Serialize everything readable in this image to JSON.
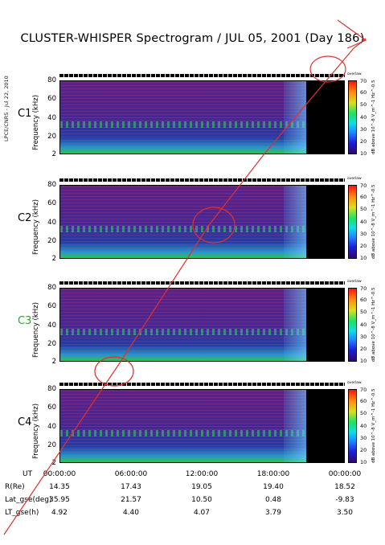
{
  "header": {
    "title": "CLUSTER-WHISPER Spectrogram / JUL 05, 2001 (Day 186)",
    "stamp": "LPCE/CNRS - Jul 22, 2010"
  },
  "ui": {
    "ylabel": "Frequency (kHz)",
    "cb_title": "overlaw",
    "cb_label": "dB above 10^-8 V_m^-1 Hz^-0.5"
  },
  "chart_data": [
    {
      "type": "heatmap",
      "panel": "C1",
      "xlabel": "UT",
      "ylabel": "Frequency (kHz)",
      "ylim": [
        2,
        80
      ],
      "yticks": [
        "80",
        "60",
        "40",
        "20",
        "2"
      ],
      "colorbar": {
        "range": [
          10,
          70
        ],
        "ticks": [
          "70",
          "60",
          "50",
          "40",
          "30",
          "20",
          "10"
        ]
      },
      "label_color": "#000000"
    },
    {
      "type": "heatmap",
      "panel": "C2",
      "xlabel": "UT",
      "ylabel": "Frequency (kHz)",
      "ylim": [
        2,
        80
      ],
      "yticks": [
        "80",
        "60",
        "40",
        "20",
        "2"
      ],
      "colorbar": {
        "range": [
          10,
          70
        ],
        "ticks": [
          "70",
          "60",
          "50",
          "40",
          "30",
          "20",
          "10"
        ]
      },
      "label_color": "#000000"
    },
    {
      "type": "heatmap",
      "panel": "C3",
      "xlabel": "UT",
      "ylabel": "Frequency (kHz)",
      "ylim": [
        2,
        80
      ],
      "yticks": [
        "80",
        "60",
        "40",
        "20",
        "2"
      ],
      "colorbar": {
        "range": [
          10,
          70
        ],
        "ticks": [
          "70",
          "60",
          "50",
          "40",
          "30",
          "20",
          "10"
        ]
      },
      "label_color": "#22aa22"
    },
    {
      "type": "heatmap",
      "panel": "C4",
      "xlabel": "UT",
      "ylabel": "Frequency (kHz)",
      "ylim": [
        2,
        80
      ],
      "yticks": [
        "80",
        "60",
        "40",
        "20",
        "2"
      ],
      "colorbar": {
        "range": [
          10,
          70
        ],
        "ticks": [
          "70",
          "60",
          "50",
          "40",
          "30",
          "20",
          "10"
        ]
      },
      "label_color": "#000000"
    }
  ],
  "xaxis": {
    "rows": [
      {
        "label": "UT",
        "values": [
          "00:00:00",
          "06:00:00",
          "12:00:00",
          "18:00:00",
          "00:00:00"
        ]
      },
      {
        "label": "R(Re)",
        "values": [
          "14.35",
          "17.43",
          "19.05",
          "19.40",
          "18.52"
        ]
      },
      {
        "label": "Lat_gse(deg)",
        "values": [
          "35.95",
          "21.57",
          "10.50",
          "0.48",
          "-9.83"
        ]
      },
      {
        "label": "LT_gse(h)",
        "values": [
          "4.92",
          "4.40",
          "4.07",
          "3.79",
          "3.50"
        ]
      }
    ]
  }
}
